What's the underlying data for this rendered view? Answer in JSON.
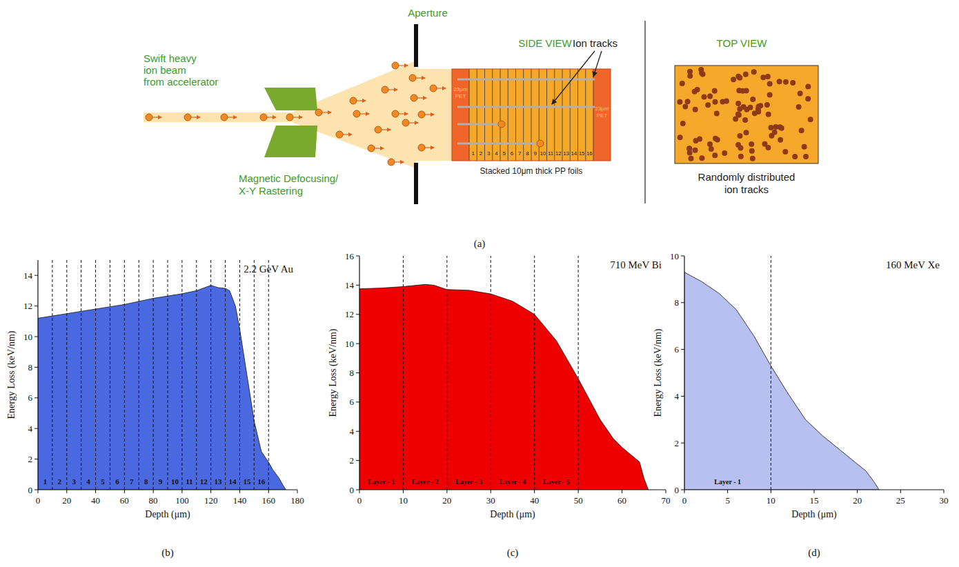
{
  "diagram": {
    "beam_label": [
      "Swift heavy",
      "ion beam",
      "from accelerator"
    ],
    "magnet_label": [
      "Magnetic Defocusing/",
      "X-Y Rastering"
    ],
    "aperture_label": "Aperture",
    "side_view_label": "SIDE VIEW",
    "ion_tracks_label": "Ion tracks",
    "pet_label": [
      "23μm",
      "PET"
    ],
    "foil_numbers": [
      "1",
      "2",
      "3",
      "4",
      "5",
      "6",
      "7",
      "8",
      "9",
      "10",
      "11",
      "12",
      "13",
      "14",
      "15",
      "16"
    ],
    "foils_label": "Stacked 10μm thick PP foils",
    "top_view_label": "TOP VIEW",
    "top_view_caption": [
      "Randomly distributed",
      "ion tracks"
    ],
    "panel_label": "(a)"
  },
  "chart_data": [
    {
      "type": "area",
      "panel_label": "(b)",
      "annotation": "2.2 GeV Au",
      "x_label": "Depth (μm)",
      "y_label": "Energy Loss (keV/nm)",
      "color": "#4a68e0",
      "x": [
        0,
        20,
        40,
        60,
        80,
        100,
        110,
        120,
        125,
        130,
        133,
        137,
        140,
        145,
        150,
        155,
        160,
        163,
        167,
        170,
        172
      ],
      "values": [
        11.2,
        11.5,
        11.8,
        12.1,
        12.5,
        12.8,
        13.0,
        13.35,
        13.2,
        13.15,
        13.0,
        12.0,
        10.5,
        7.5,
        4.5,
        2.5,
        1.8,
        1.3,
        0.8,
        0.3,
        0
      ],
      "xlim": [
        0,
        180
      ],
      "xticks": [
        0,
        20,
        40,
        60,
        80,
        100,
        120,
        140,
        160,
        180
      ],
      "ylim": [
        0,
        15
      ],
      "yticks": [
        0,
        2,
        4,
        6,
        8,
        10,
        12,
        14
      ],
      "layer_boundaries": [
        10,
        20,
        30,
        40,
        50,
        60,
        70,
        80,
        90,
        100,
        110,
        120,
        130,
        140,
        150,
        160
      ],
      "layer_labels": [
        "1",
        "2",
        "3",
        "4",
        "5",
        "6",
        "7",
        "8",
        "9",
        "10",
        "11",
        "12",
        "13",
        "14",
        "15",
        "16"
      ]
    },
    {
      "type": "area",
      "panel_label": "(c)",
      "annotation": "710 MeV Bi",
      "x_label": "Depth (μm)",
      "y_label": "Energy Loss (keV/nm)",
      "color": "#ee0000",
      "x": [
        0,
        5,
        10,
        15,
        17,
        20,
        25,
        30,
        35,
        40,
        45,
        50,
        55,
        58,
        60,
        62,
        64,
        65,
        66
      ],
      "values": [
        13.75,
        13.8,
        13.9,
        14.05,
        14.0,
        13.7,
        13.65,
        13.4,
        12.9,
        12.0,
        10.2,
        7.6,
        4.8,
        3.5,
        2.9,
        2.4,
        1.9,
        0.8,
        0
      ],
      "xlim": [
        0,
        70
      ],
      "xticks": [
        0,
        10,
        20,
        30,
        40,
        50,
        60,
        70
      ],
      "ylim": [
        0,
        16
      ],
      "yticks": [
        0,
        2,
        4,
        6,
        8,
        10,
        12,
        14,
        16
      ],
      "layer_boundaries": [
        10,
        20,
        30,
        40,
        50
      ],
      "layer_labels": [
        "Layer - 1",
        "Layer - 2",
        "Layer - 3",
        "Layer - 4",
        "Layer - 5"
      ]
    },
    {
      "type": "area",
      "panel_label": "(d)",
      "annotation": "160 MeV Xe",
      "x_label": "Depth (μm)",
      "y_label": "Energy Loss (keV/nm)",
      "color": "#b8c0f2",
      "x": [
        0,
        1,
        2,
        4,
        6,
        8,
        10,
        12,
        14,
        16,
        18,
        20,
        21,
        22,
        22.5
      ],
      "values": [
        9.3,
        9.1,
        8.9,
        8.4,
        7.7,
        6.6,
        5.3,
        4.1,
        3.0,
        2.3,
        1.7,
        1.1,
        0.8,
        0.3,
        0
      ],
      "xlim": [
        0,
        30
      ],
      "xticks": [
        0,
        5,
        10,
        15,
        20,
        25,
        30
      ],
      "ylim": [
        0,
        10
      ],
      "yticks": [
        0,
        2,
        4,
        6,
        8,
        10
      ],
      "layer_boundaries": [
        10
      ],
      "layer_labels": [
        "Layer - 1"
      ]
    }
  ]
}
